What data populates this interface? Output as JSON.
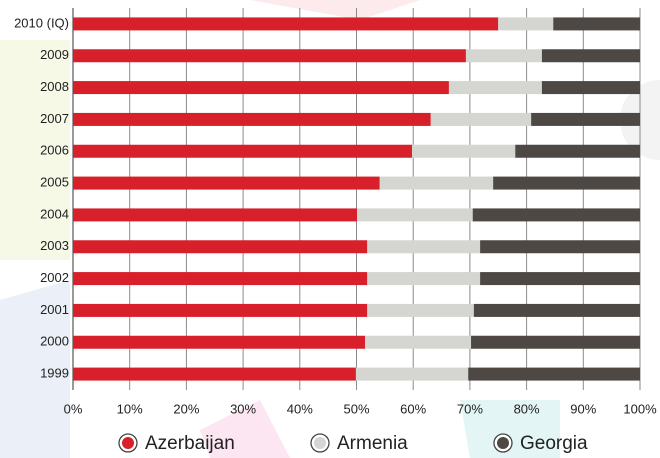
{
  "chart_data": {
    "type": "stacked_bar_horizontal",
    "categories": [
      "2010 (IQ)",
      "2009",
      "2008",
      "2007",
      "2006",
      "2005",
      "2004",
      "2003",
      "2002",
      "2001",
      "2000",
      "1999"
    ],
    "series": [
      {
        "name": "Azerbaijan",
        "color": "#d7202a",
        "values": [
          75.0,
          69.3,
          66.3,
          63.1,
          59.8,
          54.1,
          50.1,
          51.9,
          51.9,
          51.9,
          51.5,
          49.9
        ]
      },
      {
        "name": "Armenia",
        "color": "#d5d5d2",
        "values": [
          9.7,
          13.4,
          16.4,
          17.7,
          18.2,
          20.0,
          20.4,
          19.9,
          19.9,
          18.8,
          18.7,
          19.8
        ]
      },
      {
        "name": "Georgia",
        "color": "#4e4844",
        "values": [
          15.3,
          17.3,
          17.3,
          19.2,
          22.0,
          25.9,
          29.5,
          28.2,
          28.2,
          29.3,
          29.8,
          30.3
        ]
      }
    ],
    "xlim": [
      0,
      100
    ],
    "xticks": [
      {
        "value": 0,
        "label": "0%"
      },
      {
        "value": 10,
        "label": "10%"
      },
      {
        "value": 20,
        "label": "20%"
      },
      {
        "value": 30,
        "label": "30%"
      },
      {
        "value": 40,
        "label": "40%"
      },
      {
        "value": 50,
        "label": "50%"
      },
      {
        "value": 60,
        "label": "60%"
      },
      {
        "value": 70,
        "label": "70%"
      },
      {
        "value": 80,
        "label": "80%"
      },
      {
        "value": 90,
        "label": "90%"
      },
      {
        "value": 100,
        "label": "100%"
      }
    ],
    "grid": true,
    "legend": "bottom"
  }
}
